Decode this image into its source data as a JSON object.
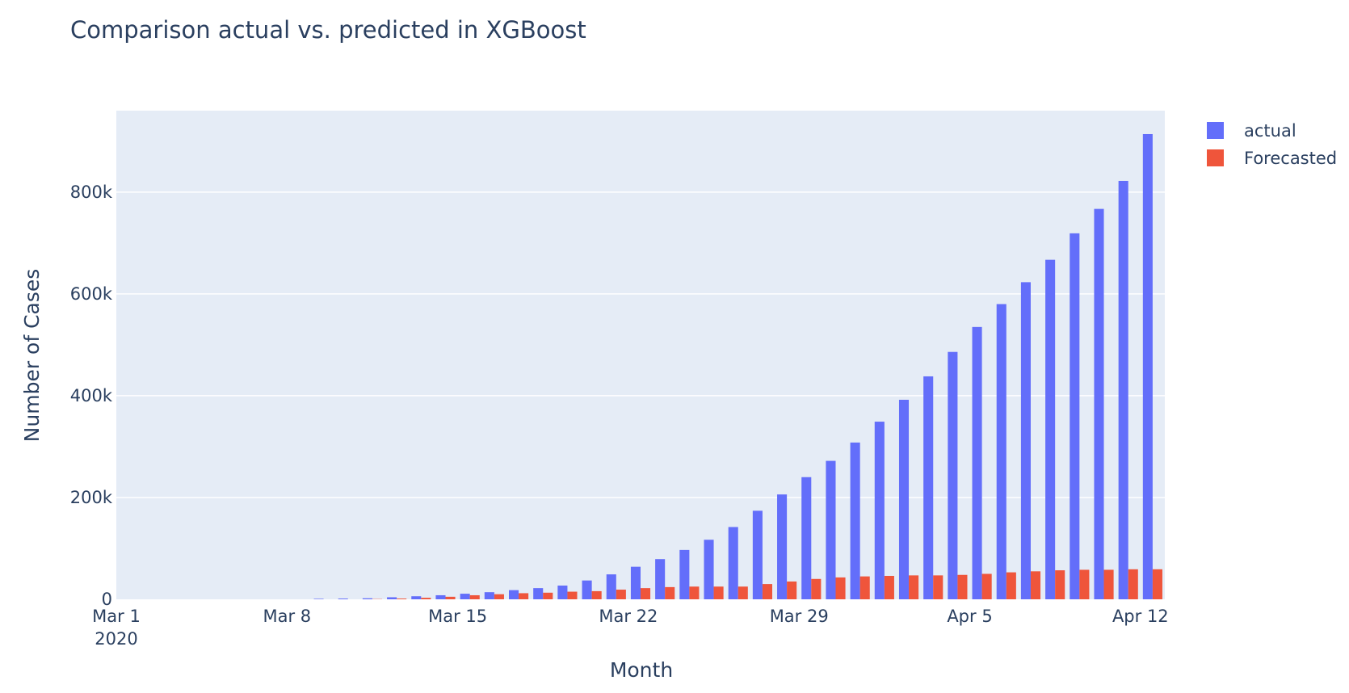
{
  "chart_data": {
    "type": "bar",
    "title": "Comparison actual  vs. predicted in XGBoost",
    "xlabel": "Month",
    "ylabel": "Number of Cases",
    "x_start_date": "2020-03-01",
    "x_tick_labels": [
      "Mar 1",
      "Mar 8",
      "Mar 15",
      "Mar 22",
      "Mar 29",
      "Apr 5",
      "Apr 12"
    ],
    "x_tick_year": "2020",
    "y_tick_labels": [
      "0",
      "200k",
      "400k",
      "600k",
      "800k"
    ],
    "y_ticks": [
      0,
      200000,
      400000,
      600000,
      800000
    ],
    "ylim": [
      0,
      960000
    ],
    "grid": true,
    "legend_position": "top-right",
    "plot_background": "#e5ecf6",
    "categories": [
      "2020-03-01",
      "2020-03-02",
      "2020-03-03",
      "2020-03-04",
      "2020-03-05",
      "2020-03-06",
      "2020-03-07",
      "2020-03-08",
      "2020-03-09",
      "2020-03-10",
      "2020-03-11",
      "2020-03-12",
      "2020-03-13",
      "2020-03-14",
      "2020-03-15",
      "2020-03-16",
      "2020-03-17",
      "2020-03-18",
      "2020-03-19",
      "2020-03-20",
      "2020-03-21",
      "2020-03-22",
      "2020-03-23",
      "2020-03-24",
      "2020-03-25",
      "2020-03-26",
      "2020-03-27",
      "2020-03-28",
      "2020-03-29",
      "2020-03-30",
      "2020-03-31",
      "2020-04-01",
      "2020-04-02",
      "2020-04-03",
      "2020-04-04",
      "2020-04-05",
      "2020-04-06",
      "2020-04-07",
      "2020-04-08",
      "2020-04-09",
      "2020-04-10",
      "2020-04-11",
      "2020-04-12"
    ],
    "series": [
      {
        "name": "actual",
        "color": "#636efa",
        "values": [
          0,
          0,
          0,
          0,
          0,
          0,
          0,
          0,
          1000,
          1500,
          2000,
          4000,
          6000,
          8000,
          11000,
          14000,
          18000,
          22000,
          27000,
          37000,
          49000,
          64000,
          79000,
          97000,
          117000,
          142000,
          174000,
          206000,
          240000,
          272000,
          308000,
          349000,
          392000,
          438000,
          486000,
          535000,
          580000,
          623000,
          667000,
          719000,
          767000,
          822000,
          870000
        ]
      },
      {
        "name": "Forecasted",
        "color": "#ef553b",
        "values": [
          0,
          0,
          0,
          0,
          0,
          0,
          0,
          0,
          0,
          0,
          500,
          1500,
          3000,
          5000,
          8000,
          10000,
          12000,
          13000,
          15000,
          16000,
          19000,
          22000,
          24000,
          25000,
          25000,
          25000,
          30000,
          35000,
          40000,
          43000,
          45000,
          46000,
          47000,
          47000,
          48000,
          50000,
          53000,
          55000,
          57000,
          58000,
          58000,
          59000,
          59000
        ]
      }
    ],
    "extra_actual_last": 914000
  }
}
